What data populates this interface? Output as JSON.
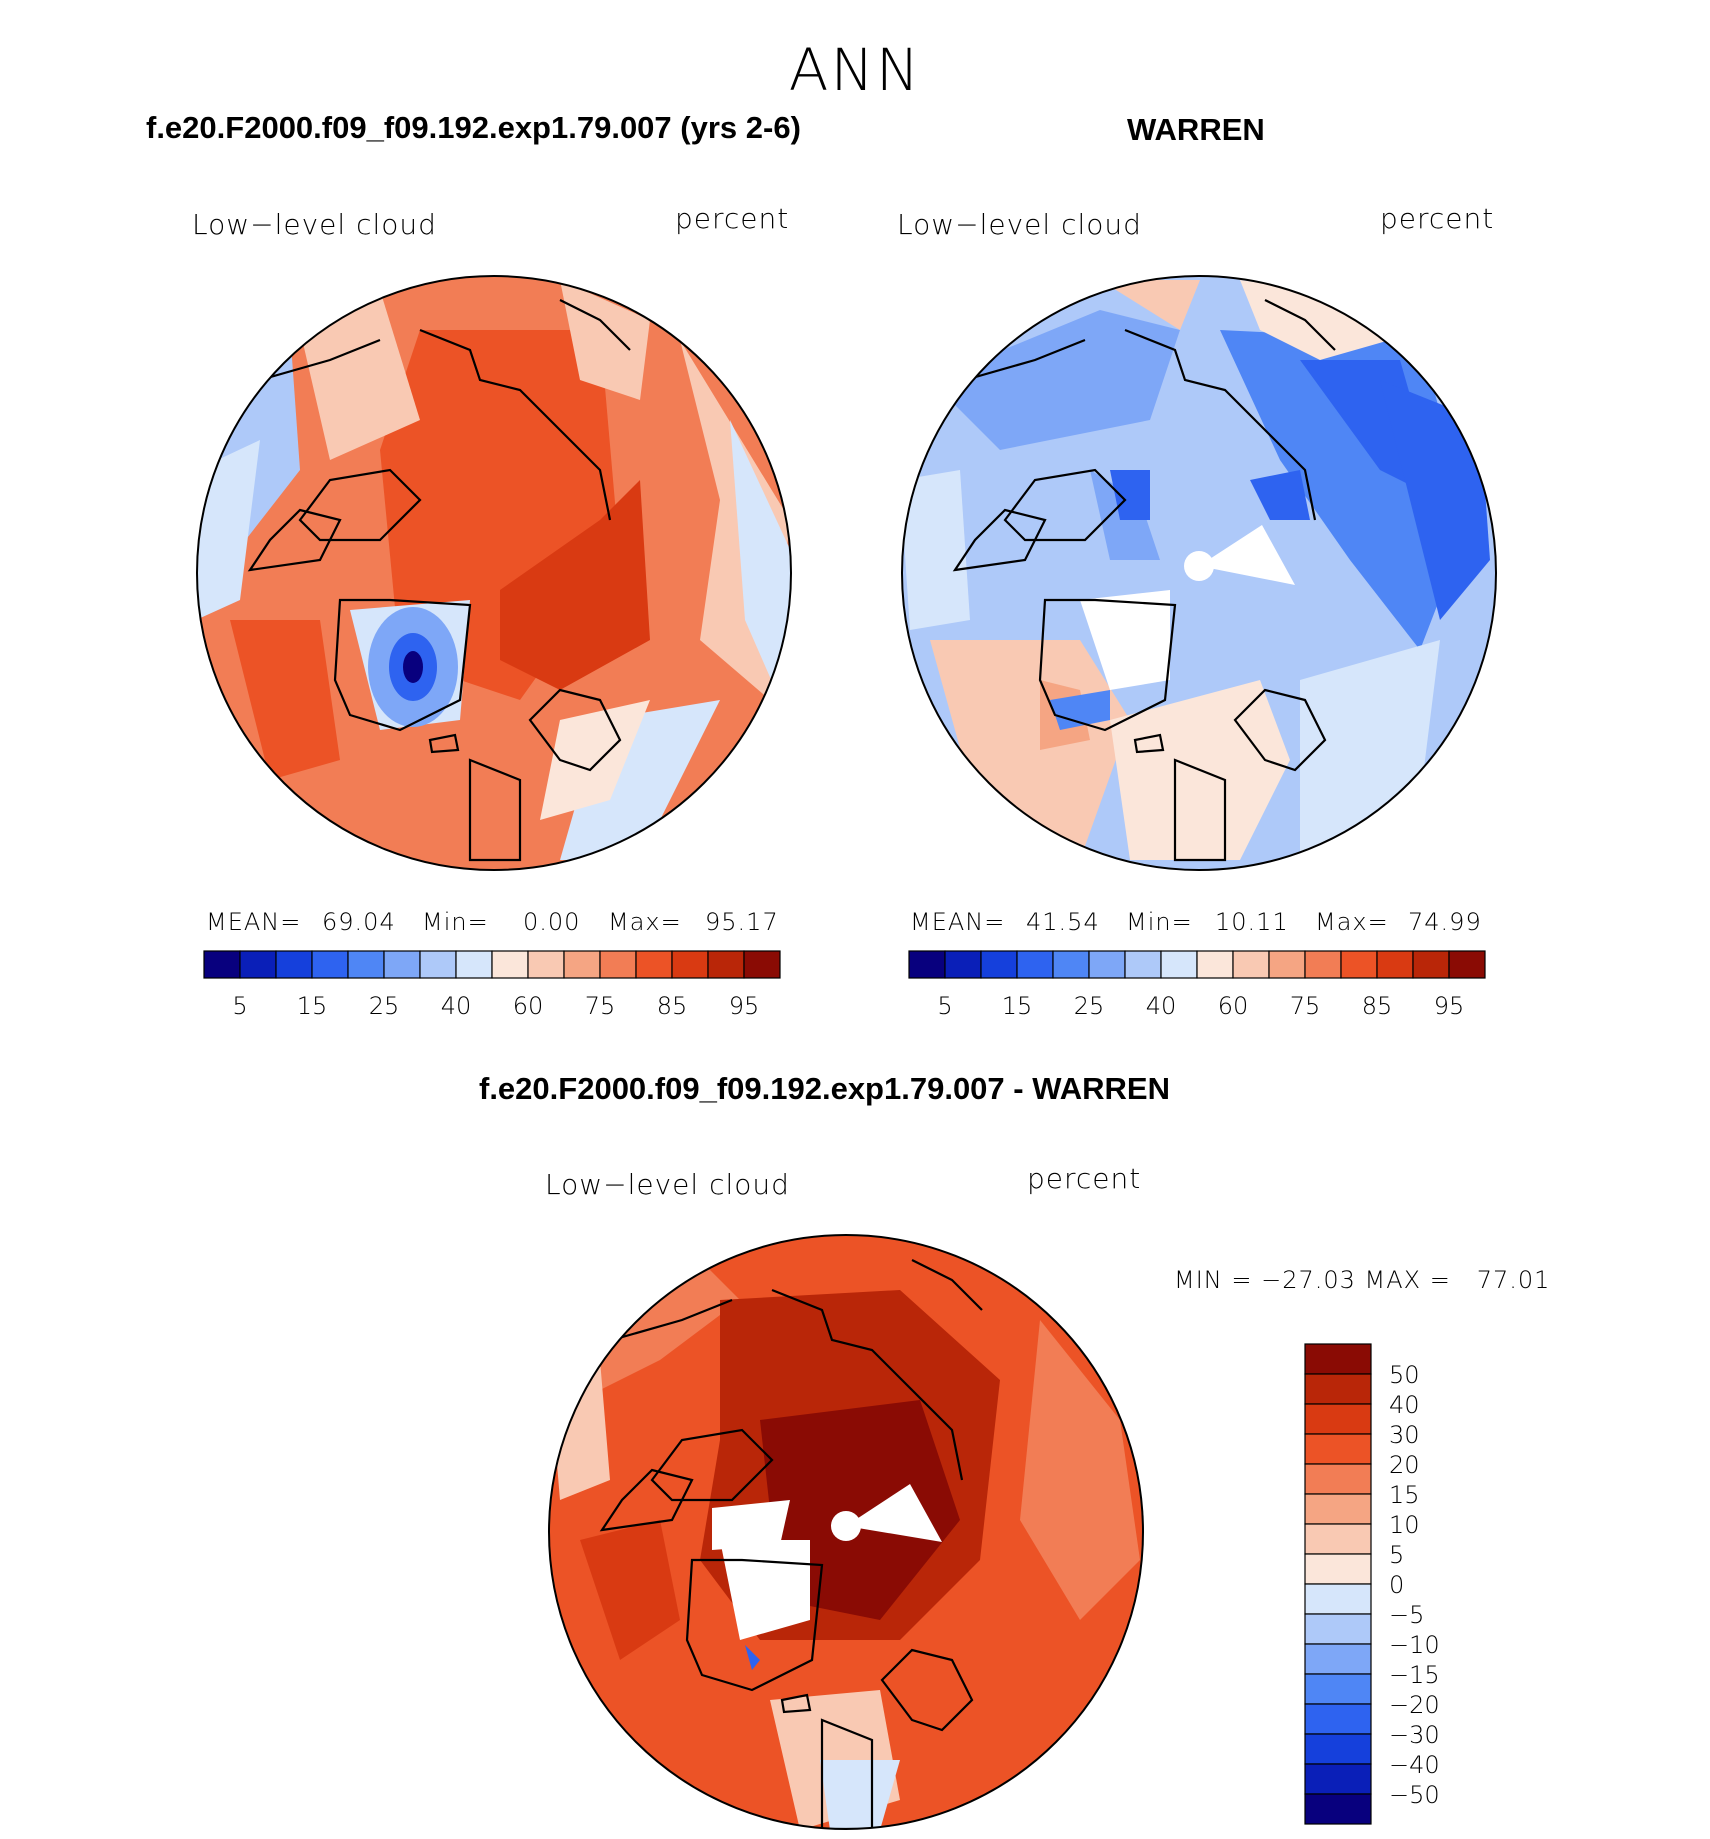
{
  "season": "ANN",
  "panels": [
    {
      "title": "f.e20.F2000.f09_f09.192.exp1.79.007 (yrs 2-6)",
      "variable": "Low−level cloud",
      "units": "percent",
      "stats": {
        "mean_label": "MEAN=",
        "mean": "69.04",
        "min_label": "Min=",
        "min": "0.00",
        "max_label": "Max=",
        "max": "95.17"
      },
      "colorbar_ticks": [
        "5",
        "15",
        "25",
        "40",
        "60",
        "75",
        "85",
        "95"
      ]
    },
    {
      "title": "WARREN",
      "variable": "Low−level cloud",
      "units": "percent",
      "stats": {
        "mean_label": "MEAN=",
        "mean": "41.54",
        "min_label": "Min=",
        "min": "10.11",
        "max_label": "Max=",
        "max": "74.99"
      },
      "colorbar_ticks": [
        "5",
        "15",
        "25",
        "40",
        "60",
        "75",
        "85",
        "95"
      ]
    }
  ],
  "difference": {
    "title": "f.e20.F2000.f09_f09.192.exp1.79.007 - WARREN",
    "variable": "Low−level cloud",
    "units": "percent",
    "minmax": "MIN = −27.03 MAX =   77.01",
    "colorbar_ticks": [
      "50",
      "40",
      "30",
      "20",
      "15",
      "10",
      "5",
      "0",
      "−5",
      "−10",
      "−15",
      "−20",
      "−30",
      "−40",
      "−50"
    ]
  },
  "colors": {
    "abs_scale": [
      "#08007e",
      "#0a1fb8",
      "#1540dc",
      "#2e63f0",
      "#4f86f5",
      "#7ea7f7",
      "#aec9f9",
      "#d6e6fb",
      "#fbe6da",
      "#f9c9b3",
      "#f5a583",
      "#f27d55",
      "#ec5326",
      "#d93a12",
      "#b92608",
      "#8a0b04"
    ],
    "diff_scale": [
      "#8a0b04",
      "#b92608",
      "#d93a12",
      "#ec5326",
      "#f27d55",
      "#f5a583",
      "#f9c9b3",
      "#fbe6da",
      "#d6e6fb",
      "#aec9f9",
      "#7ea7f7",
      "#4f86f5",
      "#2e63f0",
      "#1540dc",
      "#0a1fb8",
      "#08007e"
    ],
    "land_outline": "#000000"
  }
}
